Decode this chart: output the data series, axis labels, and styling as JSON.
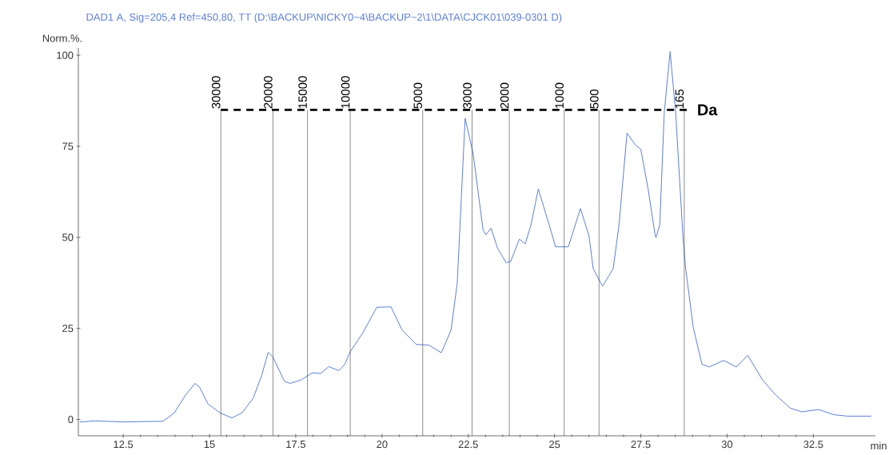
{
  "chart_data": {
    "type": "line",
    "title": "DAD1 A, Sig=205,4 Ref=450,80, TT (D:\\BACKUP\\NICKY0~4\\BACKUP~2\\1\\DATA\\CJCK01\\039-0301 D)",
    "xlabel": "min",
    "ylabel": "Norm.%.",
    "x": [
      11.24,
      11.7,
      12.5,
      13.66,
      13.98,
      14.3,
      14.58,
      14.71,
      14.96,
      15.33,
      15.65,
      15.94,
      16.26,
      16.51,
      16.7,
      16.84,
      17.17,
      17.33,
      17.65,
      17.98,
      18.22,
      18.46,
      18.75,
      18.92,
      19.08,
      19.44,
      19.85,
      20.26,
      20.58,
      20.99,
      21.36,
      21.72,
      22.0,
      22.18,
      22.41,
      22.64,
      22.93,
      23.01,
      23.16,
      23.35,
      23.6,
      23.73,
      23.98,
      24.15,
      24.32,
      24.53,
      24.94,
      25.03,
      25.4,
      25.75,
      26.0,
      26.12,
      26.39,
      26.7,
      26.87,
      27.1,
      27.34,
      27.5,
      27.71,
      27.92,
      27.94,
      28.05,
      28.18,
      28.35,
      28.51,
      28.72,
      28.8,
      29.02,
      29.27,
      29.48,
      29.9,
      30.27,
      30.6,
      31.03,
      31.4,
      31.83,
      32.16,
      32.66,
      33.09,
      33.5,
      34.18
    ],
    "series": [
      {
        "color": "#5b7fd6",
        "values": [
          -0.7,
          -0.4,
          -0.7,
          -0.5,
          1.8,
          6.6,
          9.9,
          8.9,
          4.2,
          1.7,
          0.4,
          1.8,
          5.7,
          12,
          18.4,
          17.1,
          10.5,
          9.9,
          10.8,
          12.8,
          12.6,
          14.5,
          13.4,
          15.1,
          18.6,
          23.7,
          30.8,
          30.9,
          24.6,
          20.6,
          20.4,
          18.3,
          24.5,
          37.4,
          82.7,
          73,
          52,
          50.7,
          52.5,
          47,
          43,
          43.4,
          49.5,
          48.2,
          53.5,
          63.3,
          50.4,
          47.4,
          47.4,
          57.9,
          50.4,
          41.4,
          36.6,
          41.4,
          53.5,
          78.6,
          75.4,
          74.2,
          63.4,
          50.4,
          49.9,
          53.5,
          84.3,
          101,
          84.3,
          50.4,
          41.4,
          25.3,
          15.2,
          14.4,
          16.2,
          14.4,
          17.6,
          10.8,
          6.8,
          3.1,
          2.1,
          2.7,
          1.3,
          0.9,
          0.9
        ]
      }
    ],
    "xlim": [
      11.2,
      34.3
    ],
    "ylim": [
      -4.5,
      102
    ],
    "xticks": [
      12.5,
      15,
      17.5,
      20,
      22.5,
      25,
      27.5,
      30,
      32.5
    ],
    "yticks": [
      0,
      25,
      50,
      75,
      100
    ],
    "annotations": [
      {
        "text": "30000",
        "x": 15.33,
        "y": 85
      },
      {
        "text": "20000",
        "x": 16.84,
        "y": 85
      },
      {
        "text": "15000",
        "x": 17.84,
        "y": 85
      },
      {
        "text": "10000",
        "x": 19.08,
        "y": 85
      },
      {
        "text": "5000",
        "x": 21.18,
        "y": 85
      },
      {
        "text": "3000",
        "x": 22.61,
        "y": 85
      },
      {
        "text": "2000",
        "x": 23.69,
        "y": 85
      },
      {
        "text": "1000",
        "x": 25.28,
        "y": 85
      },
      {
        "text": "500",
        "x": 26.29,
        "y": 85
      },
      {
        "text": "165",
        "x": 28.76,
        "y": 85
      }
    ],
    "ref_lines": [
      {
        "axis": "x",
        "value": 15.33,
        "color": "#404040"
      },
      {
        "axis": "x",
        "value": 16.84,
        "color": "#404040"
      },
      {
        "axis": "x",
        "value": 17.84,
        "color": "#404040"
      },
      {
        "axis": "x",
        "value": 19.08,
        "color": "#404040"
      },
      {
        "axis": "x",
        "value": 21.18,
        "color": "#404040"
      },
      {
        "axis": "x",
        "value": 22.61,
        "color": "#404040"
      },
      {
        "axis": "x",
        "value": 23.69,
        "color": "#404040"
      },
      {
        "axis": "x",
        "value": 25.28,
        "color": "#404040"
      },
      {
        "axis": "x",
        "value": 26.29,
        "color": "#404040"
      },
      {
        "axis": "x",
        "value": 28.76,
        "color": "#404040"
      },
      {
        "axis": "y",
        "value": 85,
        "label": "Da",
        "color": "#000000",
        "line_style": "dashed"
      }
    ],
    "line_style": "solid",
    "marker": "none"
  }
}
